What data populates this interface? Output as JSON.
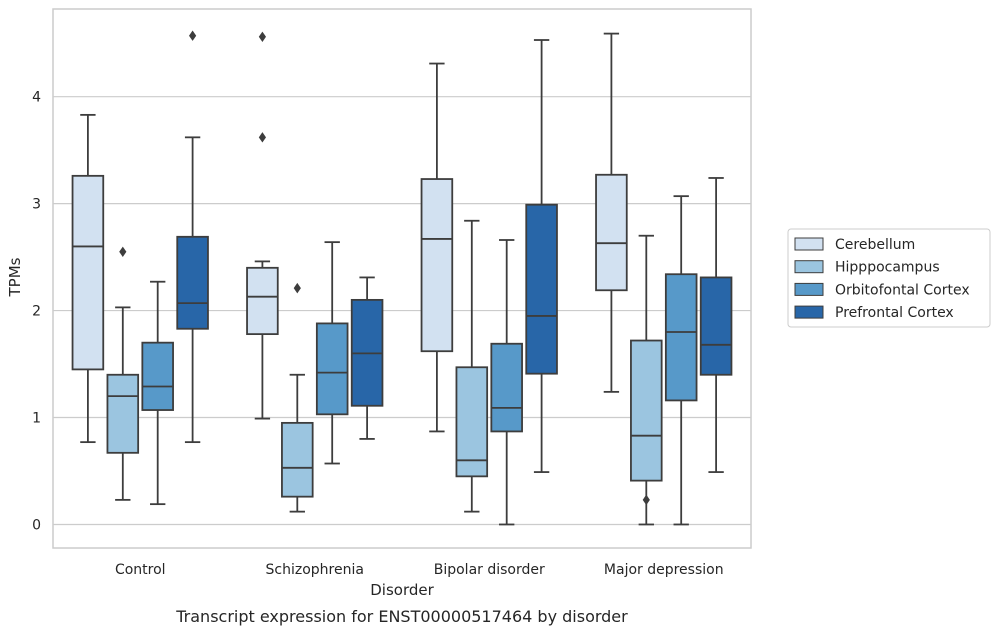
{
  "chart_data": {
    "type": "boxplot",
    "caption": "Transcript expression for ENST00000517464 by disorder",
    "xlabel": "Disorder",
    "ylabel": "TPMs",
    "ylim": [
      -0.22,
      4.82
    ],
    "yticks": [
      0,
      1,
      2,
      3,
      4
    ],
    "grid": "horizontal",
    "legend_position": "right",
    "categories": [
      "Control",
      "Schizophrenia",
      "Bipolar disorder",
      "Major depression"
    ],
    "series": [
      {
        "name": "Cerebellum",
        "color": "#d2e1f1",
        "boxes": [
          {
            "whislo": 0.77,
            "q1": 1.45,
            "med": 2.6,
            "q3": 3.26,
            "whishi": 3.83,
            "fliers": []
          },
          {
            "whislo": 0.99,
            "q1": 1.78,
            "med": 2.13,
            "q3": 2.4,
            "whishi": 2.46,
            "fliers": [
              3.62,
              4.56
            ]
          },
          {
            "whislo": 0.87,
            "q1": 1.62,
            "med": 2.67,
            "q3": 3.23,
            "whishi": 4.31,
            "fliers": []
          },
          {
            "whislo": 1.24,
            "q1": 2.19,
            "med": 2.63,
            "q3": 3.27,
            "whishi": 4.59,
            "fliers": []
          }
        ]
      },
      {
        "name": "Hipppocampus",
        "color": "#9bc5e0",
        "boxes": [
          {
            "whislo": 0.23,
            "q1": 0.67,
            "med": 1.2,
            "q3": 1.4,
            "whishi": 2.03,
            "fliers": [
              2.55
            ]
          },
          {
            "whislo": 0.12,
            "q1": 0.26,
            "med": 0.53,
            "q3": 0.95,
            "whishi": 1.4,
            "fliers": [
              2.21
            ]
          },
          {
            "whislo": 0.12,
            "q1": 0.45,
            "med": 0.6,
            "q3": 1.47,
            "whishi": 2.84,
            "fliers": []
          },
          {
            "whislo": 0.0,
            "q1": 0.41,
            "med": 0.83,
            "q3": 1.72,
            "whishi": 2.7,
            "fliers": [
              0.23
            ]
          }
        ]
      },
      {
        "name": "Orbitofontal Cortex",
        "color": "#5799c9",
        "boxes": [
          {
            "whislo": 0.19,
            "q1": 1.07,
            "med": 1.29,
            "q3": 1.7,
            "whishi": 2.27,
            "fliers": []
          },
          {
            "whislo": 0.57,
            "q1": 1.03,
            "med": 1.42,
            "q3": 1.88,
            "whishi": 2.64,
            "fliers": []
          },
          {
            "whislo": 0.0,
            "q1": 0.87,
            "med": 1.09,
            "q3": 1.69,
            "whishi": 2.66,
            "fliers": []
          },
          {
            "whislo": 0.0,
            "q1": 1.16,
            "med": 1.8,
            "q3": 2.34,
            "whishi": 3.07,
            "fliers": []
          }
        ]
      },
      {
        "name": "Prefrontal Cortex",
        "color": "#2866a8",
        "boxes": [
          {
            "whislo": 0.77,
            "q1": 1.83,
            "med": 2.07,
            "q3": 2.69,
            "whishi": 3.62,
            "fliers": [
              4.57
            ]
          },
          {
            "whislo": 0.8,
            "q1": 1.11,
            "med": 1.6,
            "q3": 2.1,
            "whishi": 2.31,
            "fliers": []
          },
          {
            "whislo": 0.49,
            "q1": 1.41,
            "med": 1.95,
            "q3": 2.99,
            "whishi": 4.53,
            "fliers": []
          },
          {
            "whislo": 0.49,
            "q1": 1.4,
            "med": 1.68,
            "q3": 2.31,
            "whishi": 3.24,
            "fliers": []
          }
        ]
      }
    ]
  },
  "style": {
    "grid_color": "#cccccc",
    "spine_color": "#cccccc",
    "line_color": "#3d3d3d"
  }
}
